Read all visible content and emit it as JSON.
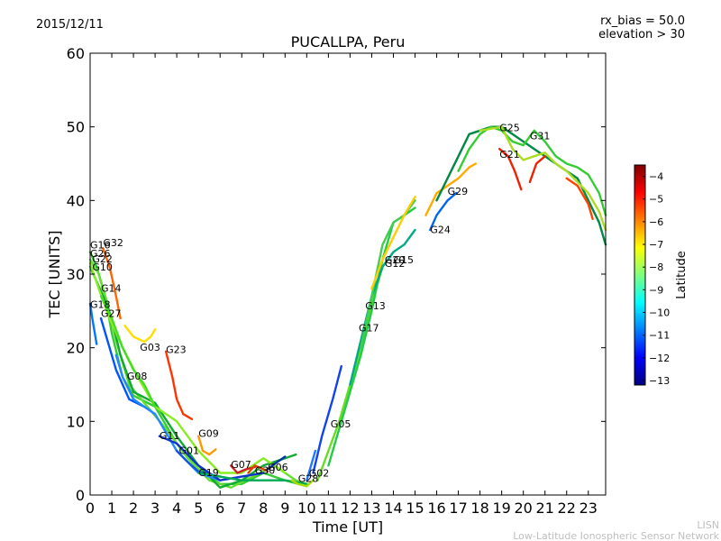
{
  "header": {
    "date": "2015/12/11",
    "rx_bias": "rx_bias = 50.0",
    "elevation": "elevation > 30"
  },
  "footer": {
    "line1": "LISN",
    "line2": "Low-Latitude Ionospheric Sensor Network"
  },
  "colorbar": {
    "label": "Latitude",
    "range": [
      -13.2,
      -3.5
    ],
    "ticks": [
      -4,
      -5,
      -6,
      -7,
      -8,
      -9,
      -10,
      -11,
      -12,
      -13
    ],
    "tick_labels": [
      "−4",
      "−5",
      "−6",
      "−7",
      "−8",
      "−9",
      "−10",
      "−11",
      "−12",
      "−13"
    ],
    "stops": [
      "#00007f",
      "#0000ff",
      "#007fff",
      "#00ffff",
      "#7fff7f",
      "#ffff00",
      "#ff7f00",
      "#ff0000",
      "#7f0000"
    ]
  },
  "chart_data": {
    "type": "line",
    "title": "PUCALLPA, Peru",
    "xlabel": "Time [UT]",
    "ylabel": "TEC [UNITS]",
    "xlim": [
      0,
      23.8
    ],
    "ylim": [
      0,
      60
    ],
    "xticks": [
      0,
      1,
      2,
      3,
      4,
      5,
      6,
      7,
      8,
      9,
      10,
      11,
      12,
      13,
      14,
      15,
      16,
      17,
      18,
      19,
      20,
      21,
      22,
      23
    ],
    "yticks": [
      0,
      10,
      20,
      30,
      40,
      50,
      60
    ],
    "series": [
      {
        "name": "G16",
        "color": "#33cc33",
        "label_at": [
          0.0,
          33.5
        ],
        "points": [
          [
            0,
            33
          ],
          [
            0.3,
            31
          ],
          [
            0.7,
            27
          ],
          [
            1.0,
            22
          ],
          [
            1.5,
            16
          ],
          [
            2.0,
            13.5
          ],
          [
            3,
            12
          ],
          [
            4,
            7
          ],
          [
            5,
            3.5
          ],
          [
            6,
            1.5
          ],
          [
            7,
            1.5
          ],
          [
            8,
            3
          ],
          [
            9,
            2
          ],
          [
            10,
            1.2
          ]
        ]
      },
      {
        "name": "G26",
        "color": "#66dd33",
        "label_at": [
          0.0,
          32.3
        ],
        "points": [
          [
            0,
            32
          ],
          [
            0.4,
            30
          ],
          [
            0.8,
            26
          ],
          [
            1.2,
            21
          ],
          [
            1.8,
            15
          ],
          [
            2.5,
            12.5
          ],
          [
            3.5,
            9
          ],
          [
            4.5,
            5
          ],
          [
            5.5,
            2
          ],
          [
            6.5,
            1
          ],
          [
            7.5,
            2.5
          ],
          [
            8.5,
            4
          ],
          [
            9.5,
            2
          ],
          [
            10,
            1.5
          ]
        ]
      },
      {
        "name": "G32",
        "color": "#ff6600",
        "label_at": [
          0.6,
          33.8
        ],
        "points": [
          [
            0.6,
            33.5
          ],
          [
            0.9,
            31
          ],
          [
            1.2,
            27
          ],
          [
            1.4,
            24
          ]
        ]
      },
      {
        "name": "G10",
        "color": "#11aa33",
        "label_at": [
          0.1,
          30.5
        ],
        "points": [
          [
            0,
            31
          ],
          [
            0.3,
            29
          ],
          [
            0.6,
            27
          ],
          [
            1.0,
            24
          ],
          [
            1.4,
            19
          ],
          [
            2,
            14
          ],
          [
            3,
            12.5
          ],
          [
            4,
            8
          ],
          [
            5,
            4
          ],
          [
            6,
            1
          ],
          [
            7,
            2
          ],
          [
            8,
            4
          ],
          [
            9,
            5
          ],
          [
            9.5,
            5.5
          ]
        ]
      },
      {
        "name": "G22",
        "color": "#88ee22",
        "label_at": [
          0.1,
          31.6
        ],
        "points": [
          [
            0,
            31.5
          ],
          [
            0.4,
            28
          ],
          [
            0.9,
            24
          ],
          [
            1.5,
            20
          ],
          [
            2.2,
            16
          ],
          [
            3,
            12
          ],
          [
            4,
            10
          ],
          [
            5,
            6
          ],
          [
            6,
            3
          ],
          [
            7,
            3
          ],
          [
            8,
            5
          ],
          [
            9,
            3
          ]
        ]
      },
      {
        "name": "G14",
        "color": "#44dd22",
        "label_at": [
          0.5,
          27.6
        ],
        "points": [
          [
            0.5,
            27
          ],
          [
            1.0,
            24
          ],
          [
            1.5,
            20
          ],
          [
            2,
            17
          ],
          [
            2.5,
            15
          ],
          [
            3,
            12
          ]
        ]
      },
      {
        "name": "G27",
        "color": "#0055ff",
        "label_at": [
          0.5,
          24.2
        ],
        "points": [
          [
            0.5,
            24
          ],
          [
            0.8,
            21
          ],
          [
            1.2,
            17
          ],
          [
            1.8,
            13
          ],
          [
            2.5,
            12
          ],
          [
            3,
            11
          ]
        ]
      },
      {
        "name": "G18",
        "color": "#0077ff",
        "label_at": [
          0.0,
          25.4
        ],
        "points": [
          [
            0,
            26
          ],
          [
            0.1,
            24
          ],
          [
            0.3,
            20.5
          ]
        ]
      },
      {
        "name": "G03",
        "color": "#ffdd00",
        "label_at": [
          2.3,
          19.6
        ],
        "points": [
          [
            1.6,
            23
          ],
          [
            2.0,
            21.5
          ],
          [
            2.5,
            20.8
          ],
          [
            2.8,
            21.5
          ],
          [
            3.0,
            22.5
          ]
        ]
      },
      {
        "name": "G23",
        "color": "#ff3300",
        "label_at": [
          3.5,
          19.3
        ],
        "points": [
          [
            3.5,
            19.5
          ],
          [
            3.8,
            16
          ],
          [
            4.0,
            13
          ],
          [
            4.3,
            11
          ],
          [
            4.7,
            10.3
          ]
        ]
      },
      {
        "name": "G08",
        "color": "#2288ff",
        "label_at": [
          1.7,
          15.7
        ],
        "points": [
          [
            1.2,
            19
          ],
          [
            1.5,
            16
          ],
          [
            2,
            13
          ],
          [
            3,
            11
          ],
          [
            4,
            6
          ],
          [
            5,
            3
          ],
          [
            6,
            2
          ]
        ]
      },
      {
        "name": "G11",
        "color": "#1133cc",
        "label_at": [
          3.2,
          7.6
        ],
        "points": [
          [
            3.2,
            8
          ],
          [
            4,
            7
          ],
          [
            5,
            4
          ],
          [
            6,
            2
          ],
          [
            7,
            2.5
          ],
          [
            8,
            3
          ]
        ]
      },
      {
        "name": "G09",
        "color": "#ff9900",
        "label_at": [
          5.0,
          7.9
        ],
        "points": [
          [
            5.0,
            8
          ],
          [
            5.2,
            6
          ],
          [
            5.5,
            5.5
          ],
          [
            5.8,
            6.2
          ]
        ]
      },
      {
        "name": "G01",
        "color": "#1155dd",
        "label_at": [
          4.1,
          5.6
        ],
        "points": [
          [
            4.0,
            6
          ],
          [
            4.5,
            4.5
          ],
          [
            5,
            3.2
          ],
          [
            5.5,
            2.8
          ],
          [
            6,
            2.5
          ]
        ]
      },
      {
        "name": "G19",
        "color": "#00aa55",
        "label_at": [
          5.0,
          2.6
        ],
        "points": [
          [
            5,
            3
          ],
          [
            6,
            2.5
          ],
          [
            7,
            2
          ],
          [
            8,
            2
          ],
          [
            9,
            2
          ],
          [
            10,
            1.5
          ]
        ]
      },
      {
        "name": "G07",
        "color": "#cc2222",
        "label_at": [
          6.5,
          3.7
        ],
        "points": [
          [
            6.5,
            4
          ],
          [
            6.8,
            3
          ],
          [
            7.2,
            3.5
          ],
          [
            7.6,
            3.8
          ]
        ]
      },
      {
        "name": "G30",
        "color": "#dd4400",
        "label_at": [
          7.6,
          2.9
        ],
        "points": [
          [
            7.3,
            3
          ],
          [
            7.6,
            4
          ],
          [
            8,
            3.5
          ],
          [
            8.2,
            3.2
          ]
        ]
      },
      {
        "name": "G06",
        "color": "#0033aa",
        "label_at": [
          8.2,
          3.3
        ],
        "points": [
          [
            8.2,
            3.5
          ],
          [
            8.5,
            4.2
          ],
          [
            8.8,
            4.8
          ],
          [
            9.0,
            5.2
          ]
        ]
      },
      {
        "name": "G28",
        "color": "#aadd00",
        "label_at": [
          9.6,
          1.8
        ],
        "points": [
          [
            9.3,
            2
          ],
          [
            9.6,
            1.5
          ],
          [
            10,
            1.2
          ],
          [
            10.3,
            2
          ]
        ]
      },
      {
        "name": "G02",
        "color": "#2277ff",
        "label_at": [
          10.1,
          2.5
        ],
        "points": [
          [
            10,
            2
          ],
          [
            10.2,
            4
          ],
          [
            10.4,
            6
          ]
        ]
      },
      {
        "name": "G05",
        "color": "#1144ee",
        "label_at": [
          11.1,
          9.2
        ],
        "points": [
          [
            10.3,
            3
          ],
          [
            10.7,
            8
          ],
          [
            11.2,
            13
          ],
          [
            11.6,
            17.5
          ]
        ]
      },
      {
        "name": "G17",
        "color": "#66dd22",
        "label_at": [
          12.4,
          22.2
        ],
        "points": [
          [
            10.5,
            2
          ],
          [
            11,
            6
          ],
          [
            11.5,
            10
          ],
          [
            12,
            15
          ],
          [
            12.5,
            20
          ],
          [
            13,
            26
          ],
          [
            13.5,
            31
          ]
        ]
      },
      {
        "name": "G13",
        "color": "#22cc44",
        "label_at": [
          12.7,
          25.2
        ],
        "points": [
          [
            11,
            4
          ],
          [
            11.5,
            9
          ],
          [
            12,
            14
          ],
          [
            12.5,
            19
          ],
          [
            13,
            25
          ],
          [
            13.5,
            32
          ],
          [
            14,
            37
          ],
          [
            14.5,
            38
          ],
          [
            15,
            39
          ]
        ]
      },
      {
        "name": "G12",
        "color": "#00aa88",
        "label_at": [
          13.6,
          31.0
        ],
        "points": [
          [
            12,
            15
          ],
          [
            12.5,
            21
          ],
          [
            13,
            27
          ],
          [
            13.5,
            31
          ],
          [
            14,
            33
          ],
          [
            14.5,
            34
          ],
          [
            15,
            36
          ]
        ]
      },
      {
        "name": "G15",
        "color": "#44cc55",
        "label_at": [
          14.0,
          31.5
        ],
        "points": [
          [
            12.5,
            20
          ],
          [
            13,
            27
          ],
          [
            13.5,
            34
          ],
          [
            14,
            37
          ],
          [
            14.5,
            38
          ],
          [
            15,
            40
          ]
        ]
      },
      {
        "name": "G20",
        "color": "#ffcc00",
        "label_at": [
          13.6,
          31.5
        ],
        "points": [
          [
            13,
            28
          ],
          [
            13.5,
            32
          ],
          [
            14,
            35
          ],
          [
            14.5,
            38
          ],
          [
            15,
            40.5
          ]
        ]
      },
      {
        "name": "G24",
        "color": "#0066ee",
        "label_at": [
          15.7,
          35.6
        ],
        "points": [
          [
            15.7,
            36
          ],
          [
            16,
            38
          ],
          [
            16.5,
            40
          ],
          [
            16.9,
            41
          ]
        ]
      },
      {
        "name": "G29",
        "color": "#ffaa00",
        "label_at": [
          16.5,
          40.8
        ],
        "points": [
          [
            15.5,
            38
          ],
          [
            16,
            41
          ],
          [
            16.5,
            42
          ],
          [
            17,
            43
          ],
          [
            17.5,
            44.5
          ],
          [
            17.8,
            45
          ]
        ]
      },
      {
        "name": "G21",
        "color": "#ee2200",
        "label_at": [
          18.9,
          45.8
        ],
        "points": [
          [
            18.9,
            47
          ],
          [
            19.3,
            46
          ],
          [
            19.6,
            44
          ],
          [
            19.9,
            41.5
          ]
        ]
      },
      {
        "name": "G25",
        "color": "#008844",
        "label_at": [
          18.9,
          49.4
        ],
        "points": [
          [
            16,
            40
          ],
          [
            17,
            46
          ],
          [
            17.5,
            49
          ],
          [
            18,
            49.5
          ],
          [
            18.5,
            50
          ],
          [
            19,
            50
          ],
          [
            19.5,
            49
          ],
          [
            20,
            48
          ],
          [
            20.5,
            47
          ],
          [
            21,
            46
          ],
          [
            21.5,
            45
          ],
          [
            22,
            44
          ],
          [
            22.5,
            43
          ],
          [
            23,
            40
          ],
          [
            23.5,
            37
          ],
          [
            23.8,
            34
          ]
        ]
      },
      {
        "name": "G31",
        "color": "#33cc33",
        "label_at": [
          20.3,
          48.3
        ],
        "points": [
          [
            17,
            44
          ],
          [
            17.5,
            47
          ],
          [
            18,
            49
          ],
          [
            18.5,
            50
          ],
          [
            19,
            49.5
          ],
          [
            19.5,
            48
          ],
          [
            20,
            47.5
          ],
          [
            20.5,
            49.5
          ],
          [
            21,
            48
          ],
          [
            21.5,
            46
          ],
          [
            22,
            45
          ],
          [
            22.5,
            44.5
          ],
          [
            23,
            43.5
          ],
          [
            23.5,
            41
          ],
          [
            23.8,
            38
          ]
        ]
      },
      {
        "name": "",
        "color": "#aadd22",
        "label_at": [
          0,
          0
        ],
        "points": [
          [
            18,
            49.5
          ],
          [
            19,
            50
          ],
          [
            19.5,
            47
          ],
          [
            20,
            45.5
          ],
          [
            20.5,
            46
          ],
          [
            21,
            46.5
          ],
          [
            21.5,
            45
          ],
          [
            22,
            44
          ],
          [
            22.5,
            42.5
          ],
          [
            23,
            41
          ],
          [
            23.5,
            38.5
          ],
          [
            23.8,
            36
          ]
        ]
      },
      {
        "name": "",
        "color": "#ee2200",
        "label_at": [
          0,
          0
        ],
        "points": [
          [
            20.3,
            42.5
          ],
          [
            20.6,
            45
          ],
          [
            21,
            46
          ]
        ]
      },
      {
        "name": "",
        "color": "#ff4400",
        "label_at": [
          0,
          0
        ],
        "points": [
          [
            22,
            43
          ],
          [
            22.5,
            42
          ],
          [
            23,
            39.5
          ],
          [
            23.2,
            37.5
          ]
        ]
      }
    ]
  }
}
